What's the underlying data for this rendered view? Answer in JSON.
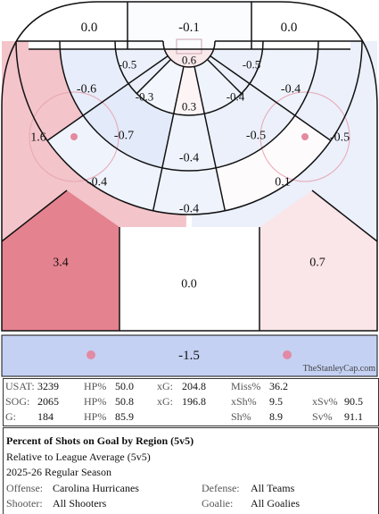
{
  "chart_data": {
    "type": "heatmap",
    "title": "Percent of Shots on Goal by Region (5v5)",
    "subtitle": "Relative to League Average (5v5)",
    "season": "2025-26 Regular Season",
    "watermark": "TheStanleyCap.com",
    "colors": {
      "positive": "#d9475a",
      "negative": "#3a66d6",
      "neutral": "#ffffff",
      "line": "#111111"
    },
    "regions": [
      {
        "id": "behind-net-left",
        "value": 0.0
      },
      {
        "id": "behind-net-center",
        "value": -0.1
      },
      {
        "id": "behind-net-right",
        "value": 0.0
      },
      {
        "id": "inner-slot-crease",
        "value": 0.6
      },
      {
        "id": "inner-ring-left-low",
        "value": -0.5
      },
      {
        "id": "inner-ring-right-low",
        "value": -0.5
      },
      {
        "id": "inner-ring-left-high",
        "value": -0.3
      },
      {
        "id": "inner-ring-right-high",
        "value": -0.4
      },
      {
        "id": "inner-slot-center",
        "value": 0.3
      },
      {
        "id": "mid-ring-left-low",
        "value": -0.6
      },
      {
        "id": "mid-ring-right-low",
        "value": -0.4
      },
      {
        "id": "mid-ring-left-high",
        "value": -0.7
      },
      {
        "id": "mid-ring-right-high",
        "value": -0.5
      },
      {
        "id": "mid-slot-center",
        "value": -0.4
      },
      {
        "id": "circle-left",
        "value": 1.6
      },
      {
        "id": "circle-right",
        "value": -0.5
      },
      {
        "id": "outer-ring-left",
        "value": -0.4
      },
      {
        "id": "outer-ring-right",
        "value": 0.1
      },
      {
        "id": "high-slot",
        "value": -0.4
      },
      {
        "id": "left-point",
        "value": 3.4
      },
      {
        "id": "right-point",
        "value": 0.7
      },
      {
        "id": "center-point",
        "value": 0.0
      },
      {
        "id": "neutral-zone",
        "value": -1.5
      }
    ]
  },
  "stats": [
    [
      {
        "label": "USAT:",
        "value": "3239"
      },
      {
        "label": "HP%",
        "value": "50.0"
      },
      {
        "label": "xG:",
        "value": "204.8"
      },
      {
        "label": "Miss%",
        "value": "36.2"
      },
      {
        "label": "",
        "value": ""
      }
    ],
    [
      {
        "label": "SOG:",
        "value": "2065"
      },
      {
        "label": "HP%",
        "value": "50.8"
      },
      {
        "label": "xG:",
        "value": "196.8"
      },
      {
        "label": "xSh%",
        "value": "9.5"
      },
      {
        "label": "xSv%",
        "value": "90.5"
      }
    ],
    [
      {
        "label": "G:",
        "value": "184"
      },
      {
        "label": "HP%",
        "value": "85.9"
      },
      {
        "label": "",
        "value": ""
      },
      {
        "label": "Sh%",
        "value": "8.9"
      },
      {
        "label": "Sv%",
        "value": "91.1"
      }
    ]
  ],
  "legend": {
    "title": "Percent of Shots on Goal by Region (5v5)",
    "subtitle": "Relative to League Average (5v5)",
    "season": "2025-26 Regular Season",
    "offense_label": "Offense:",
    "offense_value": "Carolina Hurricanes",
    "defense_label": "Defense:",
    "defense_value": "All Teams",
    "shooter_label": "Shooter:",
    "shooter_value": "All Shooters",
    "goalie_label": "Goalie:",
    "goalie_value": "All Goalies"
  }
}
